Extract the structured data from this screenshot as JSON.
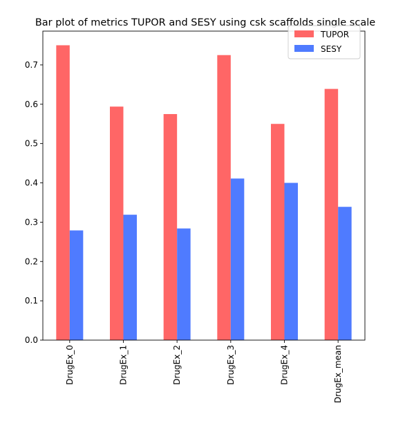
{
  "chart_data": {
    "type": "bar",
    "title": "Bar plot of metrics TUPOR and SESY using csk scaffolds single scale",
    "xlabel": "",
    "ylabel": "",
    "categories": [
      "DrugEx_0",
      "DrugEx_1",
      "DrugEx_2",
      "DrugEx_3",
      "DrugEx_4",
      "DrugEx_mean"
    ],
    "series": [
      {
        "name": "TUPOR",
        "color": "#ff6666",
        "values": [
          0.75,
          0.594,
          0.575,
          0.725,
          0.55,
          0.639
        ]
      },
      {
        "name": "SESY",
        "color": "#4f7bff",
        "values": [
          0.279,
          0.319,
          0.284,
          0.411,
          0.4,
          0.339
        ]
      }
    ],
    "ylim": [
      0,
      0.786
    ],
    "yticks": [
      "0.0",
      "0.1",
      "0.2",
      "0.3",
      "0.4",
      "0.5",
      "0.6",
      "0.7"
    ],
    "grid": false,
    "legend_position": "top-right"
  }
}
